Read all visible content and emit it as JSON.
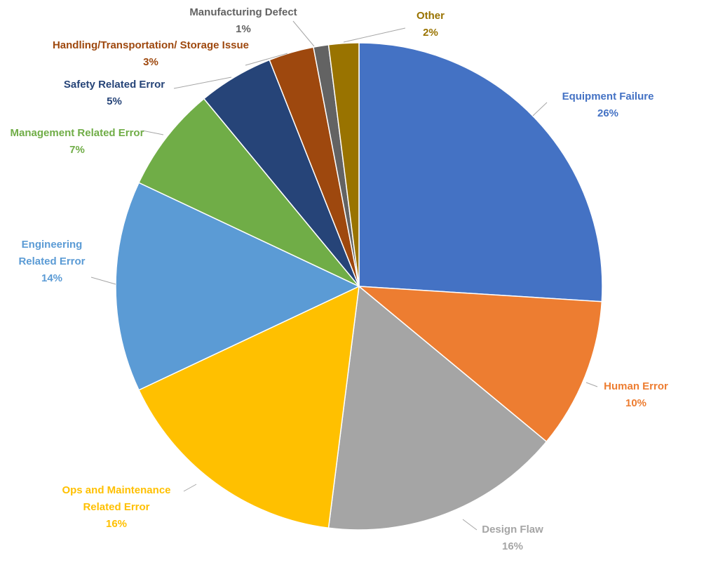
{
  "chart_data": {
    "type": "pie",
    "categories": [
      "Equipment Failure",
      "Human Error",
      "Design Flaw",
      "Ops and Maintenance Related Error",
      "Engineering Related Error",
      "Management Related Error",
      "Safety Related Error",
      "Handling/Transportation/ Storage Issue",
      "Manufacturing Defect",
      "Other"
    ],
    "values": [
      26,
      10,
      16,
      16,
      14,
      7,
      5,
      3,
      1,
      2
    ],
    "value_labels": [
      "26%",
      "10%",
      "16%",
      "16%",
      "14%",
      "7%",
      "5%",
      "3%",
      "1%",
      "2%"
    ],
    "colors": [
      "#4472c4",
      "#ed7d31",
      "#a5a5a5",
      "#ffc000",
      "#5b9bd5",
      "#70ad47",
      "#264478",
      "#9e480e",
      "#636363",
      "#997300"
    ]
  }
}
